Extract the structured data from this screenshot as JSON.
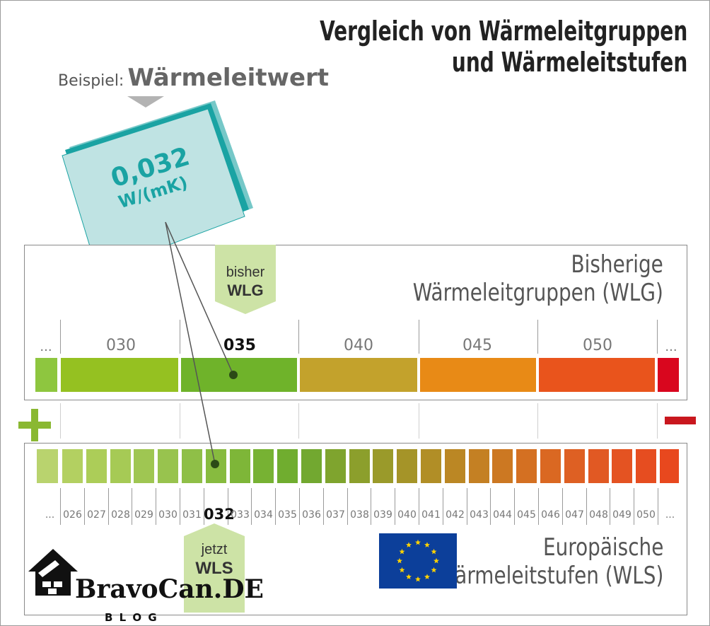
{
  "title": {
    "line1": "Vergleich von Wärmeleitgruppen",
    "line2": "und Wärmeleitstufen"
  },
  "example": {
    "prefix": "Beispiel:",
    "label": "Wärmeleitwert",
    "value": "0,032",
    "unit": "W/(mK)"
  },
  "wlg": {
    "title_line1": "Bisherige",
    "title_line2": "Wärmeleitgruppen (WLG)",
    "marker_line1": "bisher",
    "marker_line2": "WLG",
    "ellipsis_left": "...",
    "ellipsis_right": "...",
    "groups": [
      "030",
      "035",
      "040",
      "045",
      "050"
    ],
    "selected": "035"
  },
  "wls": {
    "title_line1": "Europäische",
    "title_line2": "Wärmeleitstufen (WLS)",
    "marker_line1": "jetzt",
    "marker_line2": "WLS",
    "ellipsis_left": "...",
    "ellipsis_right": "...",
    "levels": [
      "026",
      "027",
      "028",
      "029",
      "030",
      "031",
      "032",
      "033",
      "034",
      "035",
      "036",
      "037",
      "038",
      "039",
      "040",
      "041",
      "042",
      "043",
      "044",
      "045",
      "046",
      "047",
      "048",
      "049",
      "050"
    ],
    "selected": "032"
  },
  "colors": {
    "teal": "#1aa3a3",
    "card": "#bfe3e3",
    "marker": "#cde3a6",
    "plus": "#8ab832",
    "minus": "#c9171e",
    "eu_blue": "#0c3f9a",
    "eu_star": "#ffd200"
  },
  "logo": {
    "brand": "BravoCan.DE",
    "sub": "B L O G"
  }
}
